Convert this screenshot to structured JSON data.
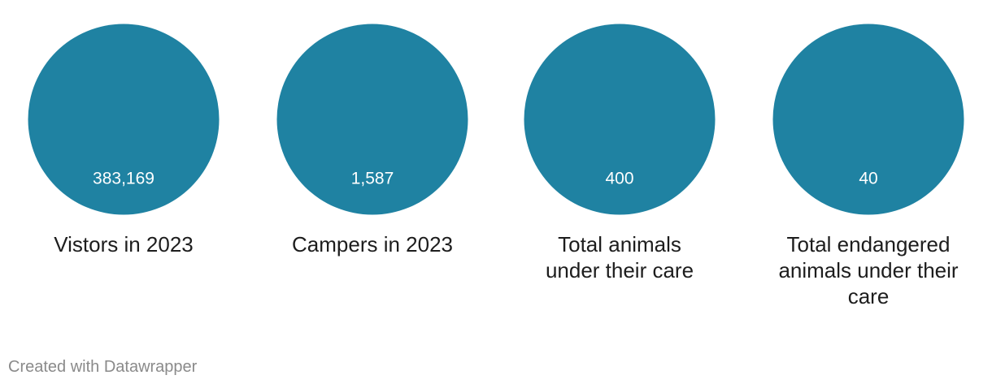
{
  "chart_data": {
    "type": "bubble",
    "categories": [
      [
        "Vistors in 2023"
      ],
      [
        "Campers in 2023"
      ],
      [
        "Total animals",
        "under their care"
      ],
      [
        "Total endangered",
        "animals under their",
        "care"
      ]
    ],
    "value_labels": [
      "383,169",
      "1,587",
      "400",
      "40"
    ],
    "values": [
      383169,
      1587,
      400,
      40
    ],
    "colors": {
      "circle": "#1f82a2",
      "value_text": "#ffffff",
      "label_text": "#1d1d1d"
    }
  },
  "footer": {
    "credit": "Created with Datawrapper"
  }
}
